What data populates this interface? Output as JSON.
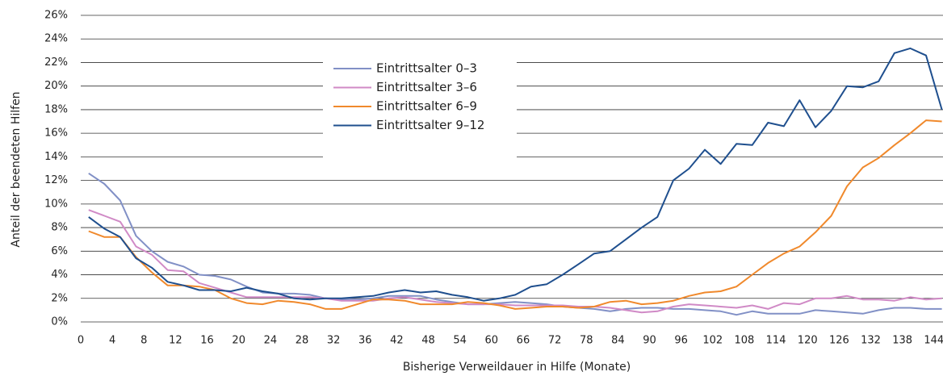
{
  "chart_data": {
    "type": "line",
    "x_label": "Bisherige Verweildauer in Hilfe (Monate)",
    "y_label": "Anteil der beendeten Hilfen",
    "categories": [
      "0",
      null,
      "4",
      null,
      "8",
      null,
      "12",
      null,
      "16",
      null,
      "20",
      null,
      "24",
      null,
      "28",
      null,
      "32",
      null,
      "36",
      null,
      "42",
      null,
      "48",
      null,
      "54",
      null,
      "60",
      null,
      "66",
      null,
      "72",
      null,
      "78",
      null,
      "84",
      null,
      "90",
      null,
      "96",
      null,
      "102",
      null,
      "108",
      null,
      "114",
      null,
      "120",
      null,
      "126",
      null,
      "132",
      null,
      "138",
      null,
      "144"
    ],
    "series": [
      {
        "name": "Eintrittsalter 0–3",
        "color": "#8190c6",
        "values": [
          12.6,
          11.7,
          10.3,
          7.3,
          6.0,
          5.1,
          4.7,
          4.0,
          3.9,
          3.6,
          3.0,
          2.5,
          2.4,
          2.4,
          2.3,
          2.0,
          1.9,
          1.9,
          2.0,
          2.2,
          2.2,
          2.2,
          1.9,
          1.7,
          1.5,
          1.5,
          1.6,
          1.7,
          1.6,
          1.5,
          1.3,
          1.2,
          1.1,
          0.9,
          1.1,
          1.2,
          1.2,
          1.1,
          1.1,
          1.0,
          0.9,
          0.6,
          0.9,
          0.7,
          0.7,
          0.7,
          1.0,
          0.9,
          0.8,
          0.7,
          1.0,
          1.2,
          1.2,
          1.1,
          1.1
        ]
      },
      {
        "name": "Eintrittsalter 3–6",
        "color": "#d08ac6",
        "values": [
          9.5,
          9.0,
          8.5,
          6.4,
          5.7,
          4.4,
          4.3,
          3.3,
          2.9,
          2.5,
          2.1,
          2.1,
          2.1,
          2.1,
          2.1,
          2.0,
          1.8,
          1.8,
          1.8,
          2.0,
          2.1,
          1.9,
          1.7,
          1.6,
          1.5,
          1.5,
          1.5,
          1.4,
          1.4,
          1.4,
          1.4,
          1.3,
          1.3,
          1.2,
          1.0,
          0.8,
          0.9,
          1.3,
          1.5,
          1.4,
          1.3,
          1.2,
          1.4,
          1.1,
          1.6,
          1.5,
          2.0,
          2.0,
          2.2,
          1.9,
          1.9,
          1.8,
          2.1,
          1.9,
          2.0
        ]
      },
      {
        "name": "Eintrittsalter 6–9",
        "color": "#f0892c",
        "values": [
          7.7,
          7.2,
          7.2,
          5.5,
          4.2,
          3.1,
          3.1,
          3.0,
          2.7,
          2.0,
          1.6,
          1.5,
          1.8,
          1.7,
          1.5,
          1.1,
          1.1,
          1.5,
          1.9,
          1.9,
          1.8,
          1.5,
          1.5,
          1.5,
          1.7,
          1.6,
          1.4,
          1.1,
          1.2,
          1.3,
          1.3,
          1.2,
          1.3,
          1.7,
          1.8,
          1.5,
          1.6,
          1.8,
          2.2,
          2.5,
          2.6,
          3.0,
          4.0,
          5.0,
          5.8,
          6.4,
          7.6,
          9.0,
          11.5,
          13.1,
          13.9,
          15.0,
          16.0,
          17.1,
          17.0
        ]
      },
      {
        "name": "Eintrittsalter 9–12",
        "color": "#1f4f8e",
        "values": [
          8.9,
          7.9,
          7.2,
          5.4,
          4.6,
          3.4,
          3.1,
          2.7,
          2.7,
          2.6,
          2.9,
          2.6,
          2.4,
          2.0,
          1.9,
          2.0,
          2.0,
          2.1,
          2.2,
          2.5,
          2.7,
          2.5,
          2.6,
          2.3,
          2.1,
          1.8,
          2.0,
          2.3,
          3.0,
          3.2,
          4.0,
          4.9,
          5.8,
          6.0,
          7.0,
          8.0,
          8.9,
          12.0,
          13.0,
          14.6,
          13.4,
          15.1,
          15.0,
          16.9,
          16.6,
          18.8,
          16.5,
          17.9,
          20.0,
          19.9,
          20.4,
          22.8,
          23.2,
          22.6,
          18.0
        ]
      }
    ],
    "ylim": [
      0,
      26
    ],
    "yticks": [
      {
        "value": 0,
        "label": "0%"
      },
      {
        "value": 2,
        "label": "2%"
      },
      {
        "value": 4,
        "label": "4%"
      },
      {
        "value": 6,
        "label": "6%"
      },
      {
        "value": 8,
        "label": "8%"
      },
      {
        "value": 10,
        "label": "10%"
      },
      {
        "value": 12,
        "label": "12%"
      },
      {
        "value": 14,
        "label": "14%"
      },
      {
        "value": 16,
        "label": "16%"
      },
      {
        "value": 18,
        "label": "18%"
      },
      {
        "value": 20,
        "label": "20%"
      },
      {
        "value": 22,
        "label": "22%"
      },
      {
        "value": 24,
        "label": "24%"
      },
      {
        "value": 26,
        "label": "26%"
      }
    ],
    "grid": true
  }
}
